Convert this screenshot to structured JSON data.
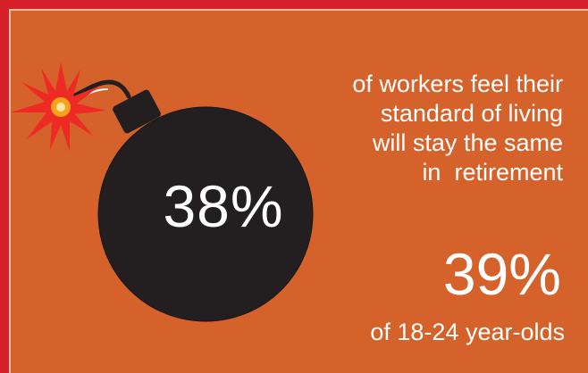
{
  "bomb": {
    "percent": "38%"
  },
  "statement": {
    "lines": [
      "of workers feel their",
      "standard of living",
      "will stay the same",
      "in  retirement"
    ]
  },
  "subgroup": {
    "percent": "39%",
    "label": "of 18-24 year-olds"
  },
  "colors": {
    "background": "#d5622b",
    "frame": "#d6202a",
    "bomb": "#231f20",
    "spark": "#ee2a24",
    "spark_core": "#f7a21b",
    "text": "#ffffff"
  },
  "icons": [
    "bomb-icon",
    "spark-icon",
    "fuse-icon"
  ]
}
